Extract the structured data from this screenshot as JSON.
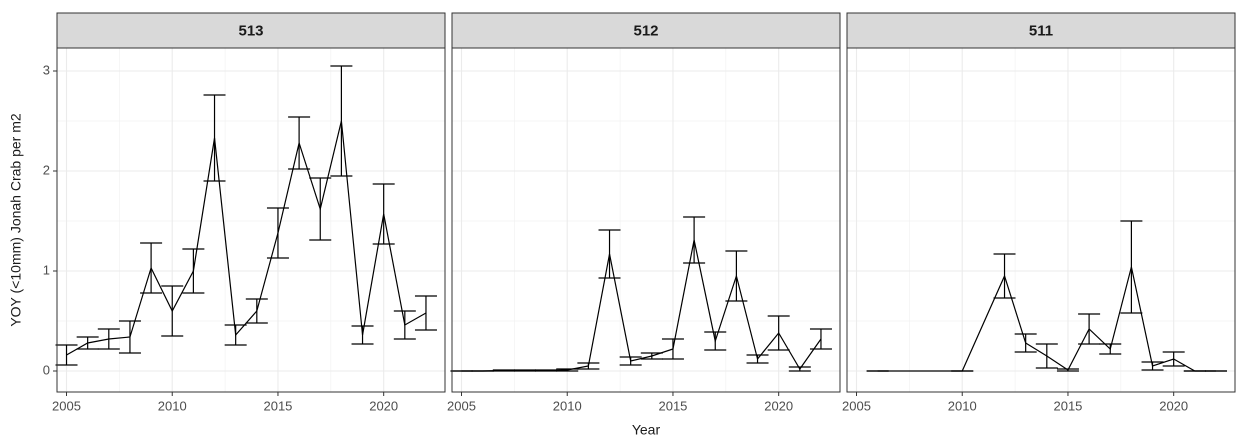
{
  "chart_data": [
    {
      "type": "line",
      "title": "513",
      "ylabel": "YOY (<10mm) Jonah Crab per m2",
      "color": "#000000",
      "grid": true,
      "x": [
        2005,
        2006,
        2007,
        2008,
        2009,
        2010,
        2011,
        2012,
        2013,
        2014,
        2015,
        2016,
        2017,
        2018,
        2019,
        2020,
        2021,
        2022
      ],
      "values": [
        0.16,
        0.28,
        0.32,
        0.34,
        1.03,
        0.6,
        1.0,
        2.33,
        0.36,
        0.6,
        1.38,
        2.28,
        1.62,
        2.5,
        0.36,
        1.57,
        0.46,
        0.58
      ],
      "errors": [
        0.1,
        0.06,
        0.1,
        0.16,
        0.25,
        0.25,
        0.22,
        0.43,
        0.1,
        0.12,
        0.25,
        0.26,
        0.31,
        0.55,
        0.09,
        0.3,
        0.14,
        0.17
      ],
      "xlim": [
        2004.55,
        2022.9
      ],
      "ylim": [
        -0.21,
        3.23
      ],
      "xticks": [
        2005,
        2010,
        2015,
        2020
      ],
      "yticks": [
        0,
        1,
        2,
        3
      ]
    },
    {
      "type": "line",
      "title": "512",
      "xlabel": "Year",
      "color": "#000000",
      "grid": true,
      "x": [
        2005,
        2006,
        2007,
        2008,
        2009,
        2010,
        2011,
        2012,
        2013,
        2014,
        2015,
        2016,
        2017,
        2018,
        2019,
        2020,
        2021,
        2022
      ],
      "values": [
        0,
        0,
        0.005,
        0.005,
        0.005,
        0.01,
        0.05,
        1.17,
        0.1,
        0.15,
        0.22,
        1.31,
        0.3,
        0.95,
        0.12,
        0.38,
        0.02,
        0.32
      ],
      "errors": [
        0,
        0,
        0.005,
        0.005,
        0.005,
        0.01,
        0.03,
        0.24,
        0.04,
        0.03,
        0.1,
        0.23,
        0.09,
        0.25,
        0.04,
        0.17,
        0.02,
        0.1
      ],
      "xlim": [
        2004.55,
        2022.9
      ],
      "ylim": [
        -0.21,
        3.23
      ],
      "xticks": [
        2005,
        2010,
        2015,
        2020
      ]
    },
    {
      "type": "line",
      "title": "511",
      "color": "#000000",
      "grid": true,
      "x": [
        2006,
        2010,
        2012,
        2013,
        2014,
        2015,
        2016,
        2017,
        2018,
        2019,
        2020,
        2021,
        2022
      ],
      "values": [
        0,
        0,
        0.95,
        0.28,
        0.15,
        0.01,
        0.42,
        0.22,
        1.04,
        0.05,
        0.12,
        0,
        0
      ],
      "errors": [
        0,
        0,
        0.22,
        0.09,
        0.12,
        0.01,
        0.15,
        0.05,
        0.46,
        0.04,
        0.07,
        0,
        0
      ],
      "xlim": [
        2004.55,
        2022.9
      ],
      "ylim": [
        -0.21,
        3.23
      ],
      "xticks": [
        2005,
        2010,
        2015,
        2020
      ]
    }
  ]
}
